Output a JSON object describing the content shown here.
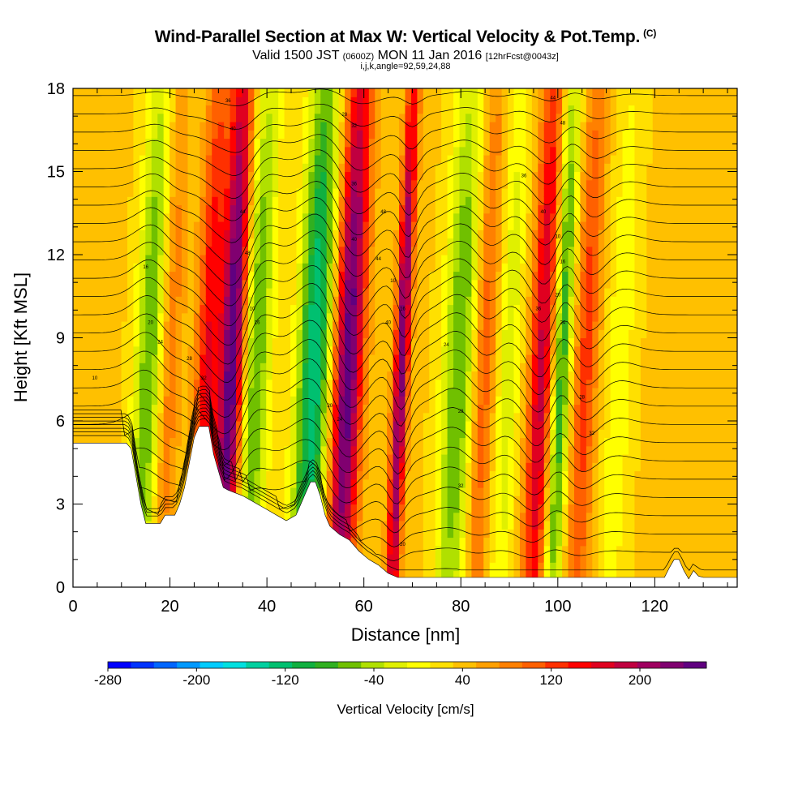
{
  "header": {
    "title": "Wind-Parallel Section at Max W: Vertical Velocity & Pot.Temp.",
    "copyright": "(C)",
    "subtitle_pre": "Valid 1500 JST",
    "subtitle_utc": "(0600Z)",
    "subtitle_date": "MON 11 Jan 2016",
    "subtitle_fcst": "[12hrFcst@0043z]",
    "subsubtitle": "i,j,k,angle=92,59,24,88"
  },
  "chart_data": {
    "type": "heatmap",
    "xlabel": "Distance [nm]",
    "ylabel": "Height [Kft MSL]",
    "xlim": [
      0,
      137
    ],
    "ylim": [
      0,
      18
    ],
    "x_ticks": [
      0,
      20,
      40,
      60,
      80,
      100,
      120
    ],
    "y_ticks": [
      0,
      3,
      6,
      9,
      12,
      15,
      18
    ],
    "colorbar": {
      "label": "Vertical Velocity [cm/s]",
      "tick_values": [
        -280,
        -200,
        -120,
        -40,
        40,
        120,
        200
      ],
      "min": -280,
      "max": 260,
      "colors": [
        "#0000ff",
        "#0033ff",
        "#0066ff",
        "#0099ff",
        "#00ccff",
        "#00e0e0",
        "#00d0a0",
        "#00c070",
        "#10b040",
        "#30b020",
        "#70c000",
        "#b0e000",
        "#e0f000",
        "#ffff00",
        "#ffe000",
        "#ffc000",
        "#ffa000",
        "#ff8000",
        "#ff6000",
        "#ff3000",
        "#ff0000",
        "#e00020",
        "#c00040",
        "#a00060",
        "#800070",
        "#600080"
      ]
    },
    "velocity_bands": [
      {
        "x": 16,
        "w": 3,
        "peak": -110
      },
      {
        "x": 20,
        "w": 2.5,
        "peak": 60
      },
      {
        "x": 28,
        "w": 2.5,
        "peak": 120
      },
      {
        "x": 33,
        "w": 2.5,
        "peak": 230
      },
      {
        "x": 38,
        "w": 3,
        "peak": -110
      },
      {
        "x": 50,
        "w": 3.5,
        "peak": -170
      },
      {
        "x": 57,
        "w": 3,
        "peak": 220
      },
      {
        "x": 68,
        "w": 1.5,
        "peak": 200
      },
      {
        "x": 80,
        "w": 3.5,
        "peak": -110
      },
      {
        "x": 85,
        "w": 2.5,
        "peak": 80
      },
      {
        "x": 90,
        "w": 2.5,
        "peak": -60
      },
      {
        "x": 97,
        "w": 2.5,
        "peak": 150
      },
      {
        "x": 101,
        "w": 2,
        "peak": -130
      },
      {
        "x": 106,
        "w": 2.5,
        "peak": 90
      },
      {
        "x": 113,
        "w": 3,
        "peak": -40
      }
    ],
    "terrain_kft": [
      [
        0,
        5.2
      ],
      [
        11,
        5.2
      ],
      [
        12,
        5.0
      ],
      [
        13,
        4.0
      ],
      [
        14,
        3.0
      ],
      [
        15,
        2.3
      ],
      [
        18,
        2.3
      ],
      [
        19,
        2.6
      ],
      [
        21,
        2.6
      ],
      [
        22,
        3.0
      ],
      [
        23,
        3.6
      ],
      [
        24,
        4.5
      ],
      [
        25,
        5.4
      ],
      [
        26,
        5.8
      ],
      [
        28,
        5.8
      ],
      [
        29,
        4.8
      ],
      [
        30,
        4.2
      ],
      [
        31,
        3.6
      ],
      [
        32,
        3.5
      ],
      [
        35,
        3.3
      ],
      [
        38,
        3.0
      ],
      [
        40,
        2.8
      ],
      [
        42,
        2.6
      ],
      [
        44,
        2.4
      ],
      [
        46,
        2.6
      ],
      [
        47,
        3.0
      ],
      [
        48,
        3.4
      ],
      [
        49,
        3.8
      ],
      [
        50,
        3.8
      ],
      [
        51,
        3.3
      ],
      [
        52,
        2.6
      ],
      [
        53,
        2.2
      ],
      [
        55,
        1.9
      ],
      [
        57,
        1.7
      ],
      [
        59,
        1.3
      ],
      [
        61,
        1.0
      ],
      [
        63,
        0.8
      ],
      [
        65,
        0.5
      ],
      [
        67,
        0.35
      ],
      [
        70,
        0.35
      ],
      [
        122,
        0.35
      ],
      [
        123,
        0.7
      ],
      [
        124,
        1.0
      ],
      [
        125,
        1.0
      ],
      [
        126,
        0.6
      ],
      [
        127,
        0.3
      ],
      [
        128,
        0.6
      ],
      [
        129,
        0.4
      ],
      [
        130,
        0.35
      ],
      [
        137,
        0.35
      ]
    ],
    "contour_levels": 28,
    "contour_label_values": [
      "10",
      "16",
      "20",
      "24",
      "28",
      "32",
      "36",
      "40",
      "44",
      "48"
    ]
  }
}
